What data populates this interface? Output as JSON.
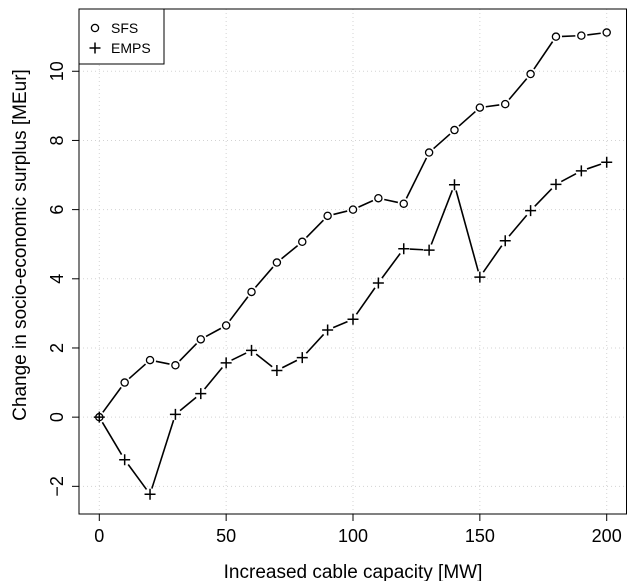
{
  "chart_data": {
    "type": "scatter",
    "xlabel": "Increased cable capacity [MW]",
    "ylabel": "Change in socio-economic surplus [MEur]",
    "xlim": [
      -8,
      208
    ],
    "ylim": [
      -2.8,
      11.8
    ],
    "xticks": [
      0,
      50,
      100,
      150,
      200
    ],
    "yticks": [
      -2,
      0,
      2,
      4,
      6,
      8,
      10
    ],
    "grid": true,
    "legend_position": "top-left",
    "x": [
      0,
      10,
      20,
      30,
      40,
      50,
      60,
      70,
      80,
      90,
      100,
      110,
      120,
      130,
      140,
      150,
      160,
      170,
      180,
      190,
      200
    ],
    "series": [
      {
        "name": "SFS",
        "marker": "circle",
        "values": [
          0.0,
          1.0,
          1.65,
          1.5,
          2.25,
          2.65,
          3.62,
          4.47,
          5.07,
          5.82,
          6.0,
          6.33,
          6.17,
          7.65,
          8.3,
          8.95,
          9.05,
          9.92,
          11.0,
          11.03,
          11.12
        ]
      },
      {
        "name": "EMPS",
        "marker": "plus",
        "values": [
          0.0,
          -1.23,
          -2.23,
          0.08,
          0.68,
          1.57,
          1.93,
          1.35,
          1.72,
          2.52,
          2.83,
          3.88,
          4.87,
          4.83,
          6.72,
          4.05,
          5.1,
          5.97,
          6.73,
          7.12,
          7.37
        ]
      }
    ]
  }
}
